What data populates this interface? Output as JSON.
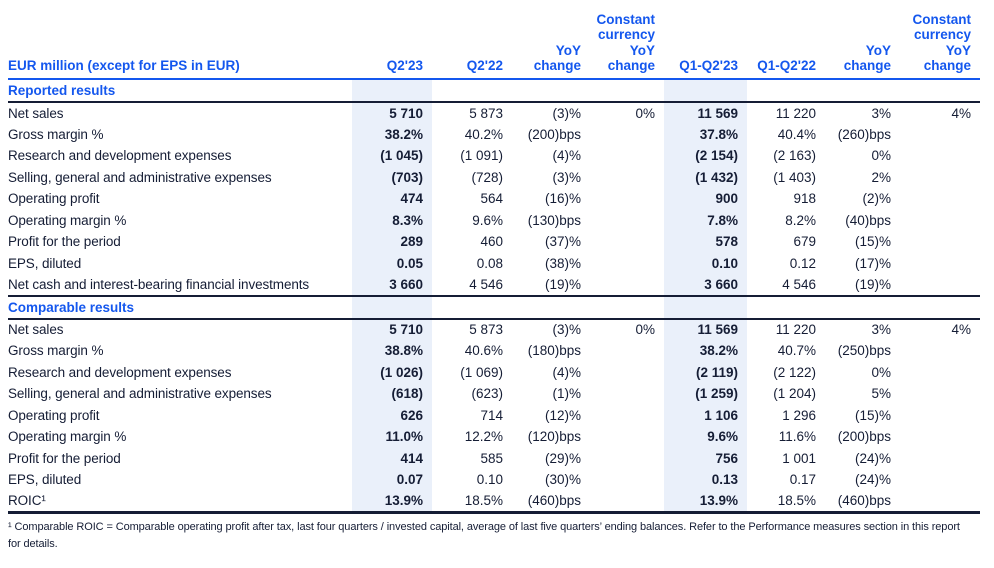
{
  "table": {
    "unit_label": "EUR million (except for EPS in EUR)",
    "columns": [
      "Q2'23",
      "Q2'22",
      "YoY\nchange",
      "Constant\ncurrency\nYoY\nchange",
      "Q1-Q2'23",
      "Q1-Q2'22",
      "YoY\nchange",
      "Constant\ncurrency\nYoY\nchange"
    ],
    "highlighted_columns": [
      "Q2'23",
      "Q1-Q2'23"
    ],
    "colors": {
      "header_blue": "#1457ee",
      "body_navy": "#151d35",
      "highlight_background": "#eaf0fa"
    },
    "sections": [
      {
        "title": "Reported results",
        "rows": [
          {
            "label": "Net sales",
            "values": [
              "5 710",
              "5 873",
              "(3)%",
              "0%",
              "11 569",
              "11 220",
              "3%",
              "4%"
            ]
          },
          {
            "label": "Gross margin %",
            "values": [
              "38.2%",
              "40.2%",
              "(200)bps",
              "",
              "37.8%",
              "40.4%",
              "(260)bps",
              ""
            ]
          },
          {
            "label": "Research and development expenses",
            "values": [
              "(1 045)",
              "(1 091)",
              "(4)%",
              "",
              "(2 154)",
              "(2 163)",
              "0%",
              ""
            ]
          },
          {
            "label": "Selling, general and administrative expenses",
            "values": [
              "(703)",
              "(728)",
              "(3)%",
              "",
              "(1 432)",
              "(1 403)",
              "2%",
              ""
            ]
          },
          {
            "label": "Operating profit",
            "values": [
              "474",
              "564",
              "(16)%",
              "",
              "900",
              "918",
              "(2)%",
              ""
            ]
          },
          {
            "label": "Operating margin %",
            "values": [
              "8.3%",
              "9.6%",
              "(130)bps",
              "",
              "7.8%",
              "8.2%",
              "(40)bps",
              ""
            ]
          },
          {
            "label": "Profit for the period",
            "values": [
              "289",
              "460",
              "(37)%",
              "",
              "578",
              "679",
              "(15)%",
              ""
            ]
          },
          {
            "label": "EPS, diluted",
            "values": [
              "0.05",
              "0.08",
              "(38)%",
              "",
              "0.10",
              "0.12",
              "(17)%",
              ""
            ]
          },
          {
            "label": "Net cash and interest-bearing financial investments",
            "values": [
              "3 660",
              "4 546",
              "(19)%",
              "",
              "3 660",
              "4 546",
              "(19)%",
              ""
            ]
          }
        ]
      },
      {
        "title": "Comparable results",
        "rows": [
          {
            "label": "Net sales",
            "values": [
              "5 710",
              "5 873",
              "(3)%",
              "0%",
              "11 569",
              "11 220",
              "3%",
              "4%"
            ]
          },
          {
            "label": "Gross margin %",
            "values": [
              "38.8%",
              "40.6%",
              "(180)bps",
              "",
              "38.2%",
              "40.7%",
              "(250)bps",
              ""
            ]
          },
          {
            "label": "Research and development expenses",
            "values": [
              "(1 026)",
              "(1 069)",
              "(4)%",
              "",
              "(2 119)",
              "(2 122)",
              "0%",
              ""
            ]
          },
          {
            "label": "Selling, general and administrative expenses",
            "values": [
              "(618)",
              "(623)",
              "(1)%",
              "",
              "(1 259)",
              "(1 204)",
              "5%",
              ""
            ]
          },
          {
            "label": "Operating profit",
            "values": [
              "626",
              "714",
              "(12)%",
              "",
              "1 106",
              "1 296",
              "(15)%",
              ""
            ]
          },
          {
            "label": "Operating margin %",
            "values": [
              "11.0%",
              "12.2%",
              "(120)bps",
              "",
              "9.6%",
              "11.6%",
              "(200)bps",
              ""
            ]
          },
          {
            "label": "Profit for the period",
            "values": [
              "414",
              "585",
              "(29)%",
              "",
              "756",
              "1 001",
              "(24)%",
              ""
            ]
          },
          {
            "label": "EPS, diluted",
            "values": [
              "0.07",
              "0.10",
              "(30)%",
              "",
              "0.13",
              "0.17",
              "(24)%",
              ""
            ]
          },
          {
            "label": "ROIC¹",
            "values": [
              "13.9%",
              "18.5%",
              "(460)bps",
              "",
              "13.9%",
              "18.5%",
              "(460)bps",
              ""
            ]
          }
        ]
      }
    ],
    "footnote": "¹ Comparable ROIC = Comparable operating profit after tax, last four quarters / invested capital, average of last five quarters’ ending balances. Refer to the Performance measures section in this report for details."
  }
}
